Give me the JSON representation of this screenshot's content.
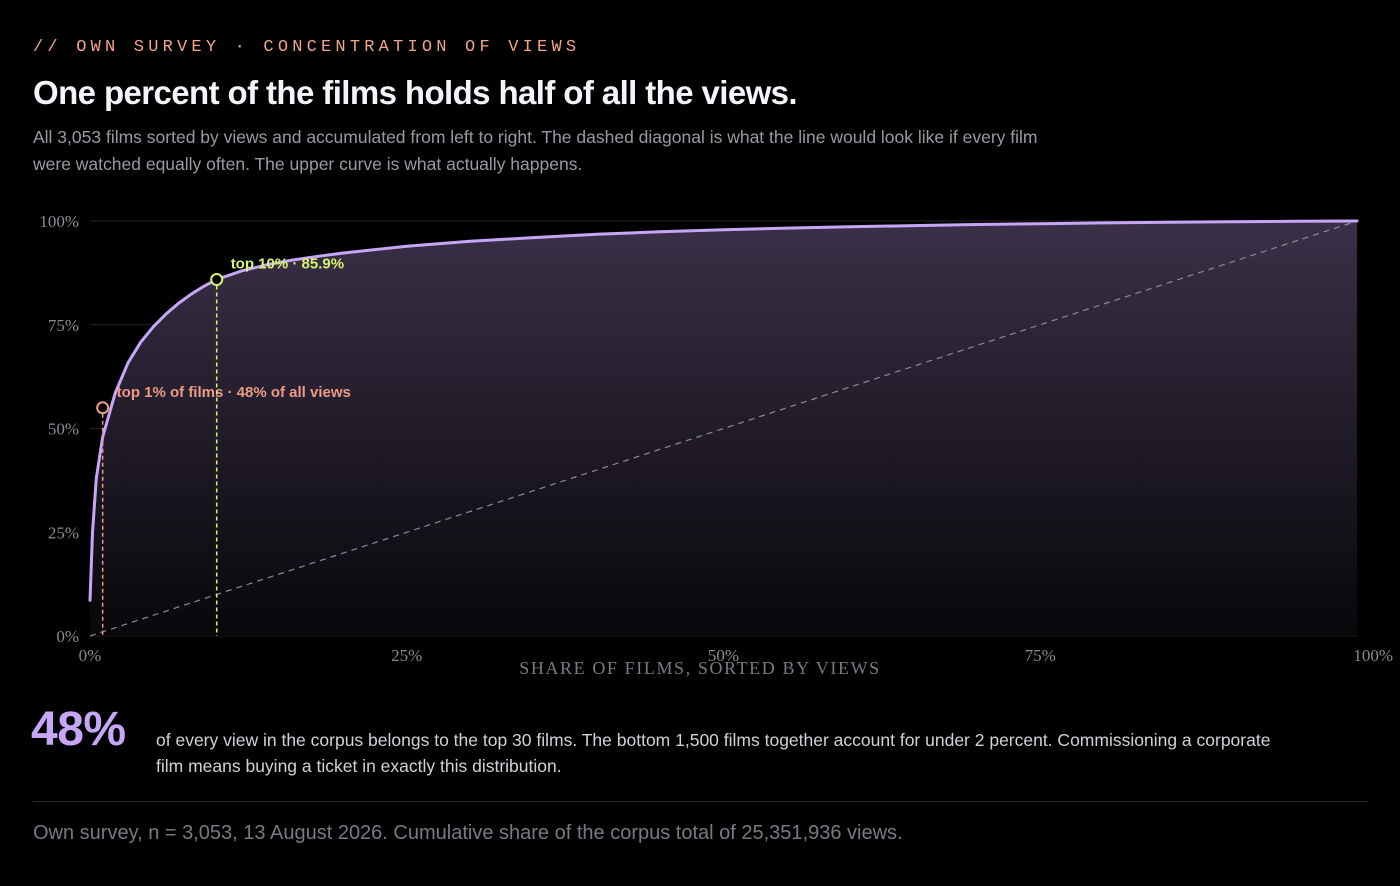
{
  "header": {
    "eyebrow": "// OWN SURVEY · CONCENTRATION OF VIEWS",
    "title": "One percent of the films holds half of all the views.",
    "subtitle": "All 3,053 films sorted by views and accumulated from left to right. The dashed diagonal is what the line would look like if every film were watched equally often. The upper curve is what actually happens."
  },
  "chart_data": {
    "type": "area",
    "xlabel": "SHARE OF FILMS, SORTED BY VIEWS",
    "ylabel": "",
    "xlim": [
      0,
      100
    ],
    "ylim": [
      0,
      100
    ],
    "x_ticks": [
      "0%",
      "25%",
      "50%",
      "75%",
      "100%"
    ],
    "y_ticks": [
      "0%",
      "25%",
      "50%",
      "75%",
      "100%"
    ],
    "grid": "horizontal",
    "legend": "none",
    "series": [
      {
        "x": [
          0,
          0.2,
          0.5,
          1,
          2,
          3,
          4,
          5,
          6,
          7,
          8,
          9,
          10,
          12,
          14,
          16,
          18,
          20,
          25,
          30,
          35,
          40,
          45,
          50,
          55,
          60,
          65,
          70,
          75,
          80,
          85,
          90,
          95,
          100
        ],
        "y": [
          8.6,
          25,
          38,
          48,
          58.6,
          65.8,
          70.8,
          74.5,
          77.6,
          80.2,
          82.4,
          84.3,
          85.9,
          88,
          89.5,
          90.6,
          91.5,
          92.3,
          93.9,
          95.1,
          96,
          96.8,
          97.4,
          97.9,
          98.3,
          98.6,
          98.9,
          99.15,
          99.35,
          99.55,
          99.7,
          99.82,
          99.92,
          100
        ]
      },
      {
        "x": [
          0,
          100
        ],
        "y": [
          0,
          100
        ]
      }
    ],
    "annotations": [
      {
        "x": 1,
        "y": 55,
        "text": "top 1% of films · 48% of all views",
        "color": "#ef9a86"
      },
      {
        "x": 10,
        "y": 85.9,
        "text": "top 10% · 85.9%",
        "color": "#d6f56a"
      }
    ],
    "colors": {
      "curve": "#c7a6f7",
      "diagonal": "#8d8a95",
      "grid": "#24222a",
      "tick": "#8c8a94",
      "top1": "#ef9a86",
      "top10": "#d6f56a"
    }
  },
  "callout": {
    "value": "48%",
    "text": "of every view in the corpus belongs to the top 30 films. The bottom 1,500 films together account for under 2 percent. Commissioning a corporate film means buying a ticket in exactly this distribution."
  },
  "footer": {
    "source": "Own survey, n = 3,053, 13 August 2026. Cumulative share of the corpus total of 25,351,936 views."
  }
}
